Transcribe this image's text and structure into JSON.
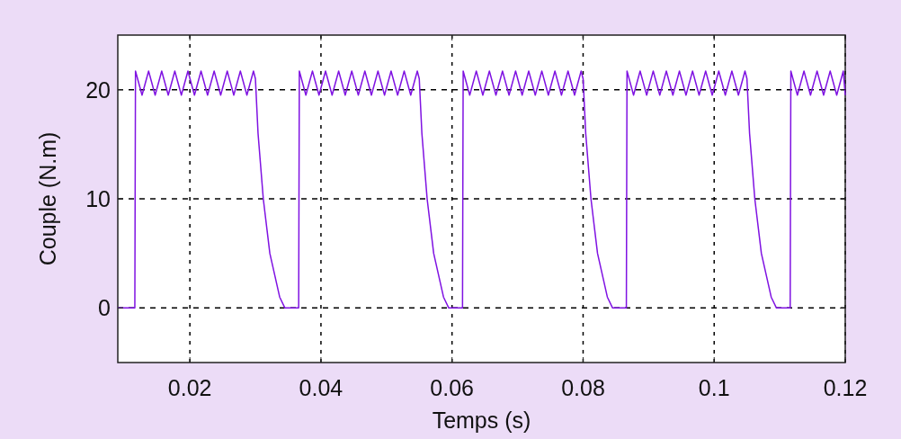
{
  "chart_data": {
    "type": "line",
    "xlabel": "Temps (s)",
    "ylabel": "Couple (N.m)",
    "xlim": [
      0.009,
      0.12
    ],
    "ylim": [
      -5,
      25
    ],
    "xticks": [
      0.02,
      0.04,
      0.06,
      0.08,
      0.1,
      0.12
    ],
    "yticks": [
      0,
      10,
      20
    ],
    "grid": true,
    "x": [
      0.009,
      0.0116,
      0.0117,
      0.0127,
      0.0137,
      0.0147,
      0.0157,
      0.0167,
      0.0177,
      0.0187,
      0.0197,
      0.0207,
      0.0217,
      0.0227,
      0.0237,
      0.0247,
      0.0257,
      0.0267,
      0.0277,
      0.0287,
      0.0297,
      0.03,
      0.0304,
      0.0312,
      0.0322,
      0.0337,
      0.0345,
      0.0366,
      0.0367,
      0.0377,
      0.0387,
      0.0397,
      0.0407,
      0.0417,
      0.0427,
      0.0437,
      0.0447,
      0.0457,
      0.0467,
      0.0477,
      0.0487,
      0.0497,
      0.0507,
      0.0517,
      0.0527,
      0.0537,
      0.0547,
      0.055,
      0.0554,
      0.0562,
      0.0572,
      0.0587,
      0.0595,
      0.0616,
      0.0617,
      0.0627,
      0.0637,
      0.0647,
      0.0657,
      0.0667,
      0.0677,
      0.0687,
      0.0697,
      0.0707,
      0.0717,
      0.0727,
      0.0737,
      0.0747,
      0.0757,
      0.0767,
      0.0777,
      0.0787,
      0.0797,
      0.08,
      0.0804,
      0.0812,
      0.0822,
      0.0837,
      0.0845,
      0.0866,
      0.0867,
      0.0877,
      0.0887,
      0.0897,
      0.0907,
      0.0917,
      0.0927,
      0.0937,
      0.0947,
      0.0957,
      0.0967,
      0.0977,
      0.0987,
      0.0997,
      0.1007,
      0.1017,
      0.1027,
      0.1037,
      0.1047,
      0.105,
      0.1054,
      0.1062,
      0.1072,
      0.1087,
      0.1095,
      0.1116,
      0.1117,
      0.1127,
      0.1137,
      0.1147,
      0.1157,
      0.1167,
      0.1177,
      0.1187,
      0.1197,
      0.12
    ],
    "series": [
      {
        "color": "#7f12e2",
        "values": [
          0,
          0,
          21.7,
          19.5,
          21.7,
          19.5,
          21.7,
          19.5,
          21.7,
          19.5,
          21.7,
          19.5,
          21.7,
          19.5,
          21.7,
          19.5,
          21.7,
          19.5,
          21.7,
          19.5,
          21.7,
          21,
          16,
          10,
          5,
          1,
          0,
          0,
          21.7,
          19.5,
          21.7,
          19.5,
          21.7,
          19.5,
          21.7,
          19.5,
          21.7,
          19.5,
          21.7,
          19.5,
          21.7,
          19.5,
          21.7,
          19.5,
          21.7,
          19.5,
          21.7,
          21,
          16,
          10,
          5,
          1,
          0,
          0,
          21.7,
          19.5,
          21.7,
          19.5,
          21.7,
          19.5,
          21.7,
          19.5,
          21.7,
          19.5,
          21.7,
          19.5,
          21.7,
          19.5,
          21.7,
          19.5,
          21.7,
          19.5,
          21.7,
          21,
          16,
          10,
          5,
          1,
          0,
          0,
          21.7,
          19.5,
          21.7,
          19.5,
          21.7,
          19.5,
          21.7,
          19.5,
          21.7,
          19.5,
          21.7,
          19.5,
          21.7,
          19.5,
          21.7,
          19.5,
          21.7,
          19.5,
          21.7,
          21,
          16,
          10,
          5,
          1,
          0,
          0,
          21.7,
          19.5,
          21.7,
          19.5,
          21.7,
          19.5,
          21.7,
          19.5,
          21.7,
          19.5
        ]
      }
    ]
  }
}
